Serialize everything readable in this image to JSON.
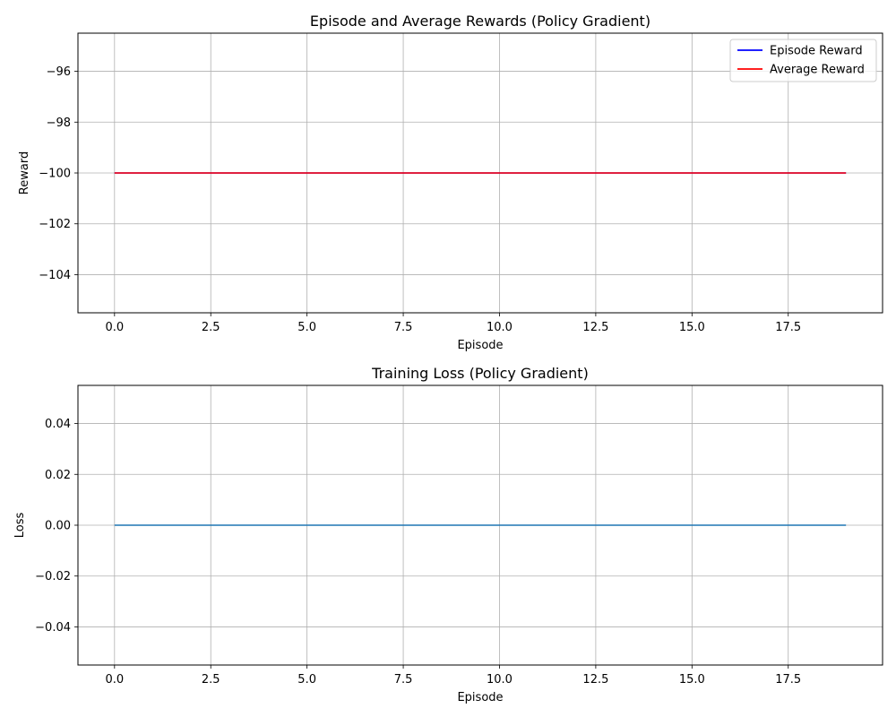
{
  "chart_data": [
    {
      "type": "line",
      "title": "Episode and Average Rewards (Policy Gradient)",
      "xlabel": "Episode",
      "ylabel": "Reward",
      "xlim": [
        -0.95,
        19.95
      ],
      "ylim": [
        -105.5,
        -94.5
      ],
      "xticks": [
        0,
        2.5,
        5,
        7.5,
        10,
        12.5,
        15,
        17.5
      ],
      "xtick_labels": [
        "0.0",
        "2.5",
        "5.0",
        "7.5",
        "10.0",
        "12.5",
        "15.0",
        "17.5"
      ],
      "yticks": [
        -104,
        -102,
        -100,
        -98,
        -96
      ],
      "ytick_labels": [
        "−104",
        "−102",
        "−100",
        "−98",
        "−96"
      ],
      "grid": true,
      "legend": "top-right",
      "x": [
        0,
        1,
        2,
        3,
        4,
        5,
        6,
        7,
        8,
        9,
        10,
        11,
        12,
        13,
        14,
        15,
        16,
        17,
        18,
        19
      ],
      "series": [
        {
          "name": "Episode Reward",
          "color": "#0000ff",
          "values": [
            -100,
            -100,
            -100,
            -100,
            -100,
            -100,
            -100,
            -100,
            -100,
            -100,
            -100,
            -100,
            -100,
            -100,
            -100,
            -100,
            -100,
            -100,
            -100,
            -100
          ]
        },
        {
          "name": "Average Reward",
          "color": "#ff0000",
          "values": [
            -100,
            -100,
            -100,
            -100,
            -100,
            -100,
            -100,
            -100,
            -100,
            -100,
            -100,
            -100,
            -100,
            -100,
            -100,
            -100,
            -100,
            -100,
            -100,
            -100
          ]
        }
      ]
    },
    {
      "type": "line",
      "title": "Training Loss (Policy Gradient)",
      "xlabel": "Episode",
      "ylabel": "Loss",
      "xlim": [
        -0.95,
        19.95
      ],
      "ylim": [
        -0.055,
        0.055
      ],
      "xticks": [
        0,
        2.5,
        5,
        7.5,
        10,
        12.5,
        15,
        17.5
      ],
      "xtick_labels": [
        "0.0",
        "2.5",
        "5.0",
        "7.5",
        "10.0",
        "12.5",
        "15.0",
        "17.5"
      ],
      "yticks": [
        -0.04,
        -0.02,
        0,
        0.02,
        0.04
      ],
      "ytick_labels": [
        "−0.04",
        "−0.02",
        "0.00",
        "0.02",
        "0.04"
      ],
      "grid": true,
      "x": [
        0,
        1,
        2,
        3,
        4,
        5,
        6,
        7,
        8,
        9,
        10,
        11,
        12,
        13,
        14,
        15,
        16,
        17,
        18,
        19
      ],
      "series": [
        {
          "color": "#1f77b4",
          "values": [
            0,
            0,
            0,
            0,
            0,
            0,
            0,
            0,
            0,
            0,
            0,
            0,
            0,
            0,
            0,
            0,
            0,
            0,
            0,
            0
          ]
        }
      ]
    }
  ]
}
